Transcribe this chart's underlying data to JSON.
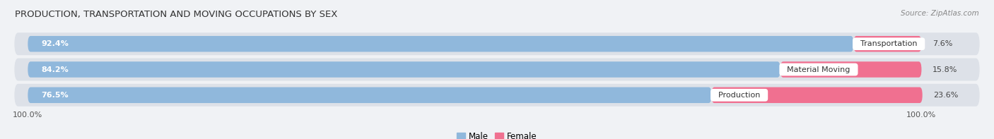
{
  "title": "PRODUCTION, TRANSPORTATION AND MOVING OCCUPATIONS BY SEX",
  "source": "Source: ZipAtlas.com",
  "categories": [
    "Transportation",
    "Material Moving",
    "Production"
  ],
  "male_values": [
    92.4,
    84.2,
    76.5
  ],
  "female_values": [
    7.6,
    15.8,
    23.6
  ],
  "male_color": "#90b8dc",
  "male_color_dark": "#6699cc",
  "female_color": "#f07090",
  "female_color_light": "#f8a8bc",
  "row_bg_color": "#e0e4ea",
  "row_alt_bg_color": "#d8dce4",
  "bg_color": "#f0f2f5",
  "title_fontsize": 9.5,
  "source_fontsize": 7.5,
  "legend_labels": [
    "Male",
    "Female"
  ],
  "xlim_left": -2.0,
  "xlim_right": 107.0
}
